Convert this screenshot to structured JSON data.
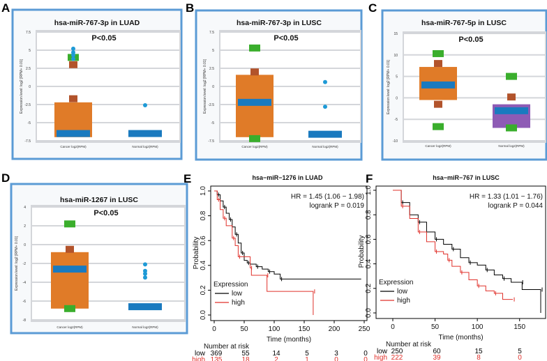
{
  "colors": {
    "frame": "#5b9bd5",
    "box": "#e07b28",
    "box_alt": "#8e5bb5",
    "median": "#1a7abf",
    "whisker": "#b2532b",
    "extreme": "#3aae2c",
    "outlier": "#1e9ad6",
    "low": "#000000",
    "high": "#e0302a"
  },
  "chart_data": [
    {
      "panel": "A",
      "type": "box",
      "title": "hsa-miR-767-3p in LUAD",
      "annotation": "P<0.05",
      "ylabel": "Expression level: log2 [RPM+ 0.01]",
      "ylim": [
        -7.5,
        7.5
      ],
      "yticks": [
        "7.5",
        "5",
        "2.5",
        "0",
        "-2.5",
        "-5",
        "-7.5"
      ],
      "ytick_values": [
        7.5,
        5,
        2.5,
        0,
        -2.5,
        -5,
        -7.5
      ],
      "groups": [
        {
          "label": "Cancer log2(RPM)",
          "box": [
            -7,
            -2.2
          ],
          "box_color": "orange",
          "median": -6.5,
          "whisker_marks": [
            -1.7,
            3.0
          ],
          "extreme_marks": [
            4.0
          ],
          "outliers": [
            3.8,
            4.3,
            4.7,
            5.2
          ]
        },
        {
          "label": "Normal log2(RPM)",
          "box": null,
          "median": -6.5,
          "whisker_marks": [],
          "extreme_marks": [],
          "outliers": [
            -2.6
          ]
        }
      ]
    },
    {
      "panel": "B",
      "type": "box",
      "title": "hsa-miR-767-3p in LUSC",
      "annotation": "P<0.05",
      "ylabel": "Expression level: log2 [RPM+ 0.01]",
      "ylim": [
        -7.5,
        7.5
      ],
      "yticks": [
        "7.5",
        "5",
        "2.5",
        "0",
        "-2.5",
        "-5",
        "-7.5"
      ],
      "ytick_values": [
        7.5,
        5,
        2.5,
        0,
        -2.5,
        -5,
        -7.5
      ],
      "groups": [
        {
          "label": "Cancer log2(RPM)",
          "box": [
            -7,
            1.6
          ],
          "box_color": "orange",
          "median": -2.2,
          "whisker_marks": [
            2.0
          ],
          "extreme_marks": [
            5.3,
            -7.2
          ],
          "outliers": []
        },
        {
          "label": "Normal log2(RPM)",
          "box": null,
          "median": -6.6,
          "whisker_marks": [],
          "extreme_marks": [],
          "outliers": [
            -2.8,
            0.6
          ]
        }
      ]
    },
    {
      "panel": "C",
      "type": "box",
      "title": "hsa-miR-767-5p in LUSC",
      "annotation": "P<0.05",
      "ylabel": "Expression level: log2 [RPM+ 0.01]",
      "ylim": [
        -10,
        15
      ],
      "yticks": [
        "15",
        "10",
        "5",
        "0",
        "-5",
        "-10"
      ],
      "ytick_values": [
        15,
        10,
        5,
        0,
        -5,
        -10
      ],
      "groups": [
        {
          "label": "Cancer log2(RPM)",
          "box": [
            -0.5,
            7.2
          ],
          "box_color": "orange",
          "median": 3.0,
          "whisker_marks": [
            8.0,
            -1.5
          ],
          "extreme_marks": [
            10.3,
            -6.7
          ],
          "outliers": []
        },
        {
          "label": "Normal log2(RPM)",
          "box": [
            -7,
            -1.5
          ],
          "box_color": "purple",
          "median": -3.0,
          "whisker_marks": [
            0.2
          ],
          "extreme_marks": [
            5.0,
            -7.0
          ],
          "outliers": []
        }
      ]
    },
    {
      "panel": "D",
      "type": "box",
      "title": "hsa-miR-1267 in LUSC",
      "annotation": "P<0.05",
      "ylabel": "Expression level: log2 [RPM+ 0.01]",
      "ylim": [
        -8,
        4
      ],
      "yticks": [
        "4",
        "2",
        "0",
        "-2",
        "-4",
        "-6",
        "-8"
      ],
      "ytick_values": [
        4,
        2,
        0,
        -2,
        -4,
        -6,
        -8
      ],
      "groups": [
        {
          "label": "Cancer log2(RPM)",
          "box": [
            -6.8,
            -0.8
          ],
          "box_color": "orange",
          "median": -2.6,
          "whisker_marks": [
            -0.5
          ],
          "extreme_marks": [
            2.2,
            -6.8
          ],
          "outliers": []
        },
        {
          "label": "Normal log2(RPM)",
          "box": null,
          "median": -6.6,
          "whisker_marks": [],
          "extreme_marks": [],
          "outliers": [
            -2.1,
            -2.8,
            -3.1,
            -3.5
          ]
        }
      ]
    },
    {
      "panel": "E",
      "type": "line",
      "title": "hsa−miR−1276 in LUAD",
      "xlabel": "Time (months)",
      "ylabel": "Probability",
      "xlim": [
        0,
        250
      ],
      "ylim": [
        0,
        1
      ],
      "xticks": [
        "0",
        "50",
        "100",
        "150",
        "200",
        "250"
      ],
      "xtick_values": [
        0,
        50,
        100,
        150,
        200,
        250
      ],
      "yticks": [
        "0.0",
        "0.2",
        "0.4",
        "0.6",
        "0.8",
        "1.0"
      ],
      "ytick_values": [
        0,
        0.2,
        0.4,
        0.6,
        0.8,
        1.0
      ],
      "hr": "HR = 1.45 (1.06 − 1.98)",
      "logrank": "logrank P = 0.019",
      "legend_title": "Expression",
      "legend_position": "bottom-left",
      "series": [
        {
          "name": "low",
          "points": [
            [
              0,
              1
            ],
            [
              5,
              0.97
            ],
            [
              10,
              0.92
            ],
            [
              15,
              0.87
            ],
            [
              20,
              0.82
            ],
            [
              25,
              0.77
            ],
            [
              30,
              0.71
            ],
            [
              35,
              0.65
            ],
            [
              40,
              0.58
            ],
            [
              45,
              0.5
            ],
            [
              50,
              0.44
            ],
            [
              55,
              0.42
            ],
            [
              60,
              0.41
            ],
            [
              70,
              0.39
            ],
            [
              80,
              0.37
            ],
            [
              90,
              0.35
            ],
            [
              100,
              0.33
            ],
            [
              110,
              0.29
            ],
            [
              245,
              0.29
            ]
          ]
        },
        {
          "name": "high",
          "points": [
            [
              0,
              1
            ],
            [
              5,
              0.93
            ],
            [
              10,
              0.85
            ],
            [
              15,
              0.78
            ],
            [
              20,
              0.72
            ],
            [
              30,
              0.62
            ],
            [
              35,
              0.56
            ],
            [
              40,
              0.47
            ],
            [
              55,
              0.47
            ],
            [
              60,
              0.38
            ],
            [
              62,
              0.32
            ],
            [
              87,
              0.32
            ],
            [
              88,
              0.19
            ],
            [
              165,
              0.19
            ],
            [
              165,
              0
            ]
          ]
        }
      ],
      "risk_title": "Number at risk",
      "risk": [
        {
          "name": "low",
          "values": [
            "369",
            "55",
            "14",
            "5",
            "3",
            "0"
          ]
        },
        {
          "name": "high",
          "values": [
            "135",
            "18",
            "2",
            "1",
            "0",
            "0"
          ]
        }
      ]
    },
    {
      "panel": "F",
      "type": "line",
      "title": "hsa−miR−767 in LUSC",
      "xlabel": "Time (months)",
      "ylabel": "Probability",
      "xlim": [
        0,
        175
      ],
      "ylim": [
        0,
        1
      ],
      "xticks": [
        "0",
        "50",
        "100",
        "150"
      ],
      "xtick_values": [
        0,
        50,
        100,
        150
      ],
      "yticks": [
        "0.0",
        "0.2",
        "0.4",
        "0.6",
        "0.8",
        "1.0"
      ],
      "ytick_values": [
        0,
        0.2,
        0.4,
        0.6,
        0.8,
        1.0
      ],
      "hr": "HR = 1.33 (1.01 − 1.76)",
      "logrank": "logrank P = 0.044",
      "legend_title": "Expression",
      "legend_position": "bottom-left",
      "series": [
        {
          "name": "low",
          "points": [
            [
              0,
              1
            ],
            [
              10,
              0.9
            ],
            [
              20,
              0.8
            ],
            [
              30,
              0.74
            ],
            [
              40,
              0.66
            ],
            [
              50,
              0.6
            ],
            [
              60,
              0.56
            ],
            [
              70,
              0.52
            ],
            [
              80,
              0.45
            ],
            [
              90,
              0.41
            ],
            [
              100,
              0.39
            ],
            [
              110,
              0.35
            ],
            [
              120,
              0.31
            ],
            [
              130,
              0.28
            ],
            [
              140,
              0.25
            ],
            [
              152,
              0.25
            ],
            [
              153,
              0.19
            ],
            [
              175,
              0.19
            ],
            [
              175,
              0
            ]
          ]
        },
        {
          "name": "high",
          "points": [
            [
              0,
              1
            ],
            [
              10,
              0.87
            ],
            [
              20,
              0.77
            ],
            [
              30,
              0.66
            ],
            [
              40,
              0.58
            ],
            [
              50,
              0.5
            ],
            [
              60,
              0.48
            ],
            [
              65,
              0.43
            ],
            [
              70,
              0.38
            ],
            [
              80,
              0.33
            ],
            [
              90,
              0.27
            ],
            [
              100,
              0.22
            ],
            [
              110,
              0.18
            ],
            [
              120,
              0.16
            ],
            [
              130,
              0.11
            ],
            [
              142,
              0.11
            ]
          ]
        }
      ],
      "risk_title": "Number at risk",
      "risk": [
        {
          "name": "low",
          "values": [
            "250",
            "60",
            "15",
            "5"
          ]
        },
        {
          "name": "high",
          "values": [
            "222",
            "39",
            "8",
            "0"
          ]
        }
      ]
    }
  ]
}
